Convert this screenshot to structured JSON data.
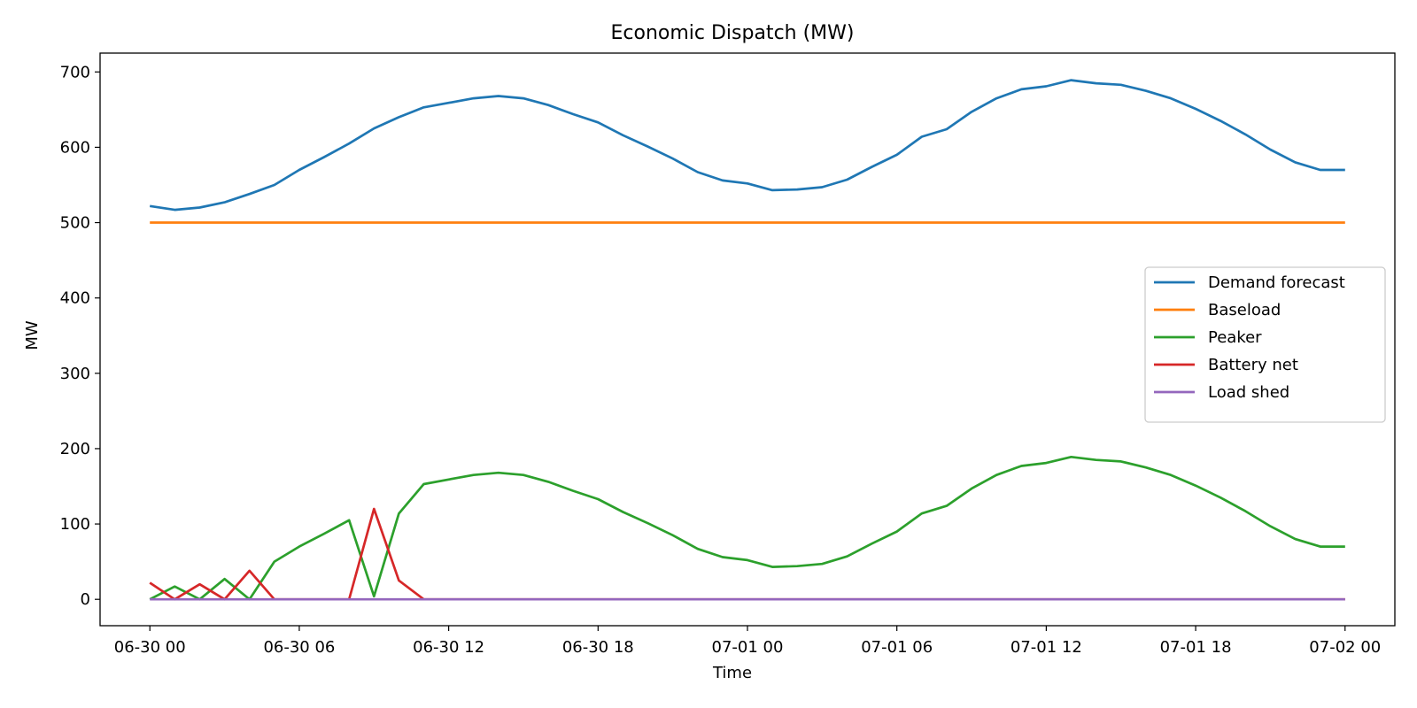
{
  "chart_data": {
    "type": "line",
    "title": "Economic Dispatch (MW)",
    "xlabel": "Time",
    "ylabel": "MW",
    "x_start": "2024-06-30T00:00",
    "x_range": [
      "2024-06-29T22:00",
      "2024-07-02T02:00"
    ],
    "ylim": [
      -35,
      725
    ],
    "yticks": [
      0,
      100,
      200,
      300,
      400,
      500,
      600,
      700
    ],
    "xticks": [
      {
        "t": "2024-06-30T00:00",
        "label": "06-30 00"
      },
      {
        "t": "2024-06-30T06:00",
        "label": "06-30 06"
      },
      {
        "t": "2024-06-30T12:00",
        "label": "06-30 12"
      },
      {
        "t": "2024-06-30T18:00",
        "label": "06-30 18"
      },
      {
        "t": "2024-07-01T00:00",
        "label": "07-01 00"
      },
      {
        "t": "2024-07-01T06:00",
        "label": "07-01 06"
      },
      {
        "t": "2024-07-01T12:00",
        "label": "07-01 12"
      },
      {
        "t": "2024-07-01T18:00",
        "label": "07-01 18"
      },
      {
        "t": "2024-07-02T00:00",
        "label": "07-02 00"
      }
    ],
    "grid": false,
    "legend_position": "center-right",
    "time_step_hours": 1,
    "series": [
      {
        "name": "Demand forecast",
        "color": "#1f77b4",
        "values": [
          522,
          517,
          520,
          527,
          538,
          550,
          570,
          587,
          605,
          625,
          640,
          653,
          659,
          665,
          668,
          665,
          656,
          644,
          633,
          616,
          601,
          585,
          567,
          556,
          552,
          543,
          544,
          547,
          557,
          574,
          590,
          614,
          624,
          647,
          665,
          677,
          681,
          689,
          685,
          683,
          675,
          665,
          651,
          635,
          617,
          597,
          580,
          570,
          570
        ]
      },
      {
        "name": "Baseload",
        "color": "#ff7f0e",
        "values": [
          500,
          500,
          500,
          500,
          500,
          500,
          500,
          500,
          500,
          500,
          500,
          500,
          500,
          500,
          500,
          500,
          500,
          500,
          500,
          500,
          500,
          500,
          500,
          500,
          500,
          500,
          500,
          500,
          500,
          500,
          500,
          500,
          500,
          500,
          500,
          500,
          500,
          500,
          500,
          500,
          500,
          500,
          500,
          500,
          500,
          500,
          500,
          500,
          500
        ]
      },
      {
        "name": "Peaker",
        "color": "#2ca02c",
        "values": [
          0,
          17,
          0,
          27,
          0,
          50,
          70,
          87,
          105,
          4,
          114,
          153,
          159,
          165,
          168,
          165,
          156,
          144,
          133,
          116,
          101,
          85,
          67,
          56,
          52,
          43,
          44,
          47,
          57,
          74,
          90,
          114,
          124,
          147,
          165,
          177,
          181,
          189,
          185,
          183,
          175,
          165,
          151,
          135,
          117,
          97,
          80,
          70,
          70
        ]
      },
      {
        "name": "Battery net",
        "color": "#d62728",
        "values": [
          22,
          0,
          20,
          0,
          38,
          0,
          0,
          0,
          0,
          120,
          25,
          0,
          0,
          0,
          0,
          0,
          0,
          0,
          0,
          0,
          0,
          0,
          0,
          0,
          0,
          0,
          0,
          0,
          0,
          0,
          0,
          0,
          0,
          0,
          0,
          0,
          0,
          0,
          0,
          0,
          0,
          0,
          0,
          0,
          0,
          0,
          0,
          0,
          0
        ]
      },
      {
        "name": "Load shed",
        "color": "#9467bd",
        "values": [
          0,
          0,
          0,
          0,
          0,
          0,
          0,
          0,
          0,
          0,
          0,
          0,
          0,
          0,
          0,
          0,
          0,
          0,
          0,
          0,
          0,
          0,
          0,
          0,
          0,
          0,
          0,
          0,
          0,
          0,
          0,
          0,
          0,
          0,
          0,
          0,
          0,
          0,
          0,
          0,
          0,
          0,
          0,
          0,
          0,
          0,
          0,
          0,
          0
        ]
      }
    ]
  }
}
